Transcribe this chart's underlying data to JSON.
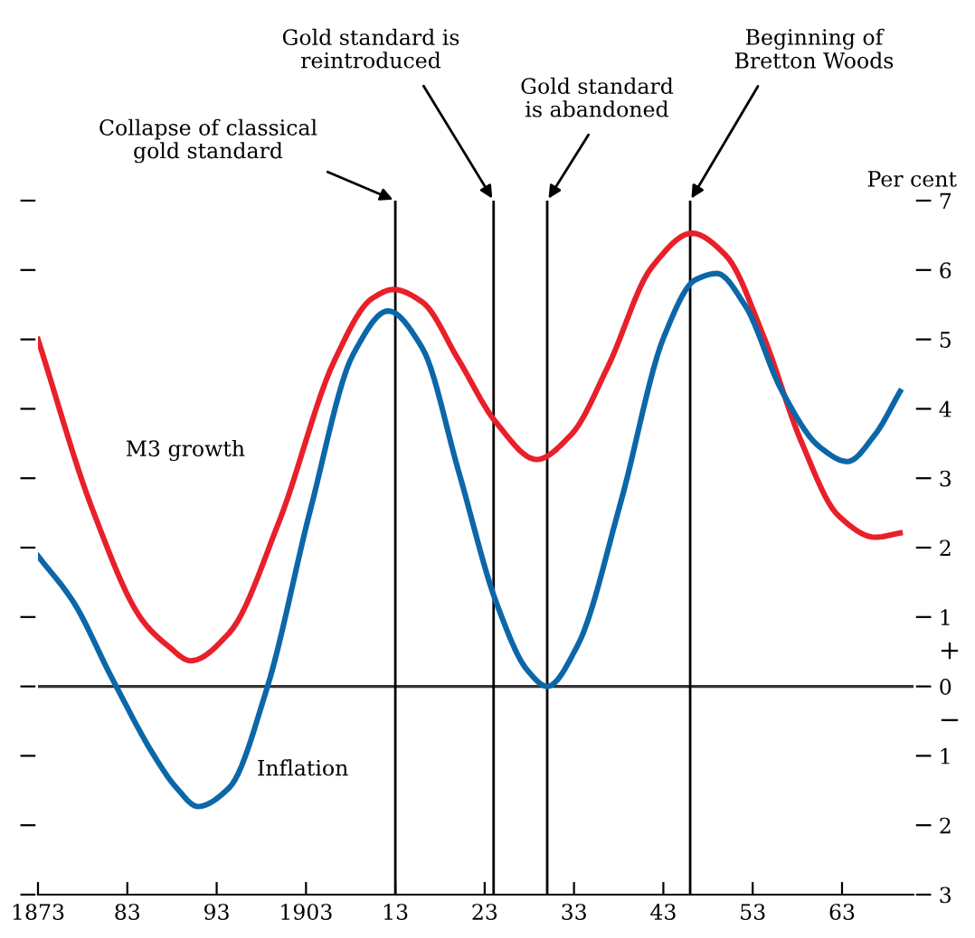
{
  "chart_data": {
    "type": "line",
    "ylabel": "Per cent",
    "xlim": [
      1873,
      1971
    ],
    "xticks": [
      {
        "value": 1873,
        "label": "1873"
      },
      {
        "value": 1883,
        "label": "83"
      },
      {
        "value": 1893,
        "label": "93"
      },
      {
        "value": 1903,
        "label": "1903"
      },
      {
        "value": 1913,
        "label": "13"
      },
      {
        "value": 1923,
        "label": "23"
      },
      {
        "value": 1933,
        "label": "33"
      },
      {
        "value": 1943,
        "label": "43"
      },
      {
        "value": 1953,
        "label": "53"
      },
      {
        "value": 1963,
        "label": "63"
      }
    ],
    "ylim": [
      -3,
      7
    ],
    "yticks": [
      {
        "value": -3,
        "label": "3"
      },
      {
        "value": -2,
        "label": "2"
      },
      {
        "value": -1,
        "label": "1"
      },
      0,
      1,
      2,
      3,
      4,
      5,
      6,
      7
    ],
    "series": [
      {
        "name": "M3 growth",
        "color": "#e8202a",
        "x": [
          1873,
          1879.1,
          1884.7,
          1887.5,
          1890.1,
          1894.4,
          1900,
          1906.2,
          1910.4,
          1912.8,
          1916,
          1920.1,
          1924.3,
          1928.8,
          1932.7,
          1936.8,
          1941.7,
          1946.2,
          1950,
          1954.2,
          1958.4,
          1962.6,
          1966.7,
          1969.5
        ],
        "values": [
          5.0,
          2.55,
          0.95,
          0.59,
          0.37,
          0.77,
          2.38,
          4.7,
          5.59,
          5.72,
          5.54,
          4.7,
          3.8,
          3.27,
          3.63,
          4.61,
          6.04,
          6.53,
          6.21,
          5.05,
          3.54,
          2.46,
          2.15,
          2.21
        ]
      },
      {
        "name": "Inflation",
        "color": "#0b67a8",
        "x": [
          1873,
          1877,
          1881.2,
          1886.1,
          1888.5,
          1890.9,
          1894.4,
          1898.6,
          1903.5,
          1908.3,
          1912.2,
          1916,
          1920.1,
          1924.3,
          1927.8,
          1930,
          1933.4,
          1938.2,
          1943.1,
          1946.6,
          1949,
          1952.1,
          1956.3,
          1960.5,
          1963.6,
          1966.7,
          1969.5
        ],
        "values": [
          1.88,
          1.21,
          0.14,
          -1.02,
          -1.46,
          -1.73,
          -1.46,
          -0.04,
          2.55,
          4.79,
          5.41,
          4.88,
          3.09,
          1.21,
          0.23,
          0,
          0.59,
          2.64,
          5.05,
          5.86,
          5.95,
          5.5,
          4.25,
          3.45,
          3.24,
          3.63,
          4.25
        ]
      }
    ],
    "ref_lines": [
      {
        "axis": "y",
        "value": 0,
        "label": null
      },
      {
        "axis": "x",
        "value": 1913,
        "label": "Collapse of classical\ngold standard"
      },
      {
        "axis": "x",
        "value": 1924,
        "label": "Gold standard is\nreintroduced"
      },
      {
        "axis": "x",
        "value": 1930,
        "label": "Gold standard\nis abandoned"
      },
      {
        "axis": "x",
        "value": 1946,
        "label": "Beginning of\nBretton Woods"
      }
    ],
    "annotations": [
      "+",
      "−"
    ],
    "legend": false,
    "grid": false
  }
}
